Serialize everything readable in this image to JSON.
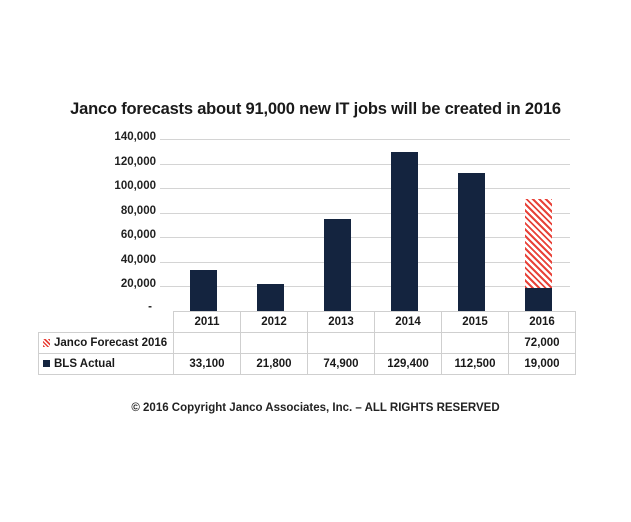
{
  "chart_data": {
    "type": "bar",
    "stacked": true,
    "title": "Janco forecasts about 91,000 new IT jobs  will  be created in 2016",
    "xlabel": "",
    "ylabel": "",
    "ylim": [
      0,
      140000
    ],
    "yticks": [
      "-",
      "20,000",
      "40,000",
      "60,000",
      "80,000",
      "100,000",
      "120,000",
      "140,000"
    ],
    "categories": [
      "2011",
      "2012",
      "2013",
      "2014",
      "2015",
      "2016"
    ],
    "series": [
      {
        "name": "BLS Actual",
        "color": "#14243f",
        "values": [
          33100,
          21800,
          74900,
          129400,
          112500,
          19000
        ],
        "labels": [
          "33,100",
          "21,800",
          "74,900",
          "129,400",
          "112,500",
          "19,000"
        ]
      },
      {
        "name": "Janco Forecast 2016",
        "color": "#e8433a",
        "pattern": "diagonal-stripes",
        "values": [
          null,
          null,
          null,
          null,
          null,
          72000
        ],
        "labels": [
          "",
          "",
          "",
          "",
          "",
          "72,000"
        ]
      }
    ],
    "grid": true,
    "legend_position": "data-table"
  },
  "footer": {
    "copyright": "© 2016 Copyright Janco Associates, Inc. – ALL RIGHTS RESERVED"
  }
}
